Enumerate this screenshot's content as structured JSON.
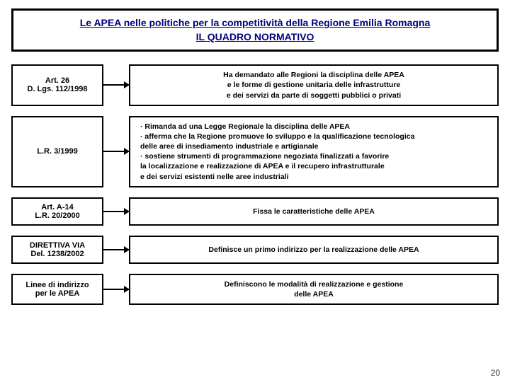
{
  "title": {
    "line1": "Le APEA nelle politiche per la competitività della Regione Emilia Romagna",
    "line2": "IL QUADRO NORMATIVO"
  },
  "rows": [
    {
      "left": {
        "l1": "Art. 26",
        "l2": "D. Lgs. 112/1998"
      },
      "align": "center",
      "right_lines": [
        "Ha demandato alle Regioni la disciplina delle APEA",
        "e le forme di gestione unitaria delle infrastrutture",
        "e dei servizi da parte di soggetti pubblici o privati"
      ]
    },
    {
      "left": {
        "l1": "L.R. 3/1999",
        "l2": ""
      },
      "align": "left",
      "right_lines": [
        "· Rimanda ad una Legge Regionale la disciplina delle APEA",
        "· afferma che la Regione promuove lo sviluppo e la qualificazione tecnologica",
        "  delle aree di insediamento industriale e artigianale",
        "· sostiene strumenti di programmazione negoziata finalizzati a favorire",
        "  la localizzazione e realizzazione di APEA e il recupero infrastrutturale",
        "e dei servizi esistenti nelle aree industriali"
      ]
    },
    {
      "left": {
        "l1": "Art. A-14",
        "l2": "L.R. 20/2000"
      },
      "align": "center",
      "right_lines": [
        "Fissa le caratteristiche delle APEA"
      ]
    },
    {
      "left": {
        "l1": "DIRETTIVA VIA",
        "l2": "Del. 1238/2002"
      },
      "align": "center",
      "right_lines": [
        "Definisce un primo indirizzo per la realizzazione delle APEA"
      ]
    },
    {
      "left": {
        "l1": "Linee di indirizzo",
        "l2": "per le APEA"
      },
      "align": "center",
      "right_lines": [
        "Definiscono le modalità di realizzazione e gestione",
        "delle APEA"
      ]
    }
  ],
  "pageNumber": "20",
  "colors": {
    "title_text": "#000080",
    "border": "#000000",
    "body_text": "#000000",
    "background": "#ffffff"
  },
  "fontsizes": {
    "title": 14,
    "box_label": 11,
    "box_text": 10.5,
    "page_num": 12
  }
}
